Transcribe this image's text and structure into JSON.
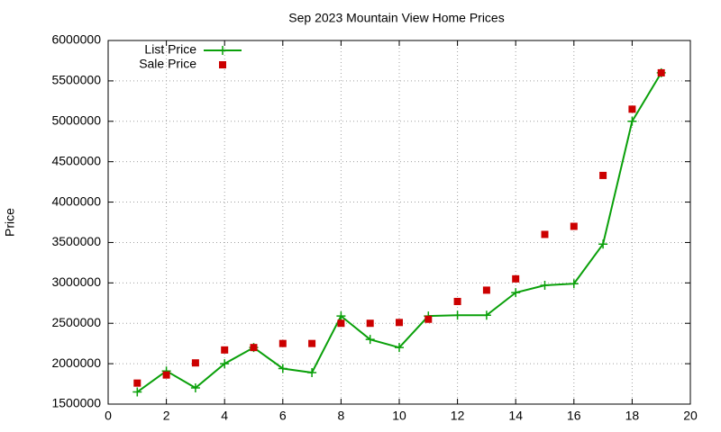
{
  "chart_data": {
    "type": "line",
    "title": "Sep 2023 Mountain View Home Prices",
    "y_label": "Price",
    "x": [
      1,
      2,
      3,
      4,
      5,
      6,
      7,
      8,
      9,
      10,
      11,
      12,
      13,
      14,
      15,
      16,
      17,
      18,
      19
    ],
    "series": [
      {
        "name": "List Price",
        "color": "#0aa00a",
        "style": "linespoints",
        "values": [
          1650000,
          1910000,
          1700000,
          2000000,
          2200000,
          1940000,
          1890000,
          2590000,
          2300000,
          2200000,
          2590000,
          2600000,
          2600000,
          2880000,
          2970000,
          2990000,
          3480000,
          5000000,
          5600000
        ]
      },
      {
        "name": "Sale Price",
        "color": "#cc0000",
        "style": "points",
        "values": [
          1760000,
          1860000,
          2010000,
          2170000,
          2200000,
          2250000,
          2250000,
          2500000,
          2500000,
          2510000,
          2550000,
          2770000,
          2910000,
          3050000,
          3600000,
          3700000,
          4330000,
          5150000,
          5600000
        ]
      }
    ],
    "xlim": [
      0,
      20
    ],
    "xticks": [
      0,
      2,
      4,
      6,
      8,
      10,
      12,
      14,
      16,
      18,
      20
    ],
    "ylim": [
      1500000,
      6000000
    ],
    "yticks": [
      1500000,
      2000000,
      2500000,
      3000000,
      3500000,
      4000000,
      4500000,
      5000000,
      5500000,
      6000000
    ],
    "grid": true,
    "legend": "top-left"
  }
}
